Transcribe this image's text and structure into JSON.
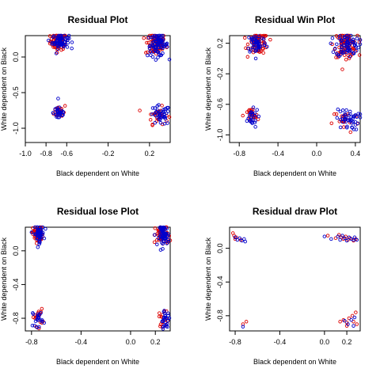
{
  "chart_data": [
    {
      "type": "scatter",
      "title": "Residual Plot",
      "xlabel": "Black dependent on White",
      "ylabel": "White dependent on Black",
      "xlim": [
        -1.0,
        0.4
      ],
      "ylim": [
        -1.2,
        0.3
      ],
      "xticks": [
        -1.0,
        -0.8,
        -0.6,
        -0.2,
        0.2
      ],
      "xtick_labels": [
        "-1.0",
        "-0.8",
        "-0.6",
        "-0.2",
        "0.2"
      ],
      "yticks": [
        0.0,
        -0.5,
        -1.0
      ],
      "ytick_labels": [
        "0.0",
        "-0.5",
        "-1.0"
      ],
      "series": [
        {
          "color": "#dd0000",
          "clusters": [
            {
              "cx": -0.68,
              "cy": 0.22,
              "sx": 0.04,
              "sy": 0.06,
              "n": 75
            },
            {
              "cx": 0.26,
              "cy": 0.18,
              "sx": 0.05,
              "sy": 0.08,
              "n": 75
            },
            {
              "cx": -0.66,
              "cy": -0.76,
              "sx": 0.03,
              "sy": 0.05,
              "n": 20
            },
            {
              "cx": 0.28,
              "cy": -0.82,
              "sx": 0.05,
              "sy": 0.06,
              "n": 25
            }
          ]
        },
        {
          "color": "#0000cc",
          "clusters": [
            {
              "cx": -0.66,
              "cy": 0.22,
              "sx": 0.04,
              "sy": 0.05,
              "n": 70
            },
            {
              "cx": 0.28,
              "cy": 0.17,
              "sx": 0.05,
              "sy": 0.08,
              "n": 80
            },
            {
              "cx": -0.67,
              "cy": -0.78,
              "sx": 0.03,
              "sy": 0.06,
              "n": 30
            },
            {
              "cx": 0.3,
              "cy": -0.82,
              "sx": 0.05,
              "sy": 0.07,
              "n": 40
            }
          ]
        }
      ]
    },
    {
      "type": "scatter",
      "title": "Residual Win Plot",
      "xlabel": "Black dependent on White",
      "ylabel": "White dependent on Black",
      "xlim": [
        -0.9,
        0.45
      ],
      "ylim": [
        -1.1,
        0.3
      ],
      "xticks": [
        -0.8,
        -0.4,
        0.0,
        0.4
      ],
      "xtick_labels": [
        "-0.8",
        "-0.4",
        "0.0",
        "0.4"
      ],
      "yticks": [
        0.2,
        -0.2,
        -0.6,
        -1.0
      ],
      "ytick_labels": [
        "0.2",
        "-0.2",
        "-0.6",
        "-1.0"
      ],
      "series": [
        {
          "color": "#dd0000",
          "clusters": [
            {
              "cx": -0.6,
              "cy": 0.2,
              "sx": 0.05,
              "sy": 0.07,
              "n": 70
            },
            {
              "cx": 0.3,
              "cy": 0.18,
              "sx": 0.06,
              "sy": 0.08,
              "n": 90
            },
            {
              "cx": -0.68,
              "cy": -0.75,
              "sx": 0.04,
              "sy": 0.05,
              "n": 22
            },
            {
              "cx": 0.3,
              "cy": -0.82,
              "sx": 0.07,
              "sy": 0.08,
              "n": 20
            }
          ]
        },
        {
          "color": "#0000cc",
          "clusters": [
            {
              "cx": -0.62,
              "cy": 0.2,
              "sx": 0.05,
              "sy": 0.07,
              "n": 50
            },
            {
              "cx": 0.32,
              "cy": 0.18,
              "sx": 0.06,
              "sy": 0.08,
              "n": 70
            },
            {
              "cx": -0.68,
              "cy": -0.78,
              "sx": 0.04,
              "sy": 0.06,
              "n": 25
            },
            {
              "cx": 0.32,
              "cy": -0.8,
              "sx": 0.06,
              "sy": 0.07,
              "n": 45
            }
          ]
        }
      ]
    },
    {
      "type": "scatter",
      "title": "Residual lose Plot",
      "xlabel": "Black dependent on White",
      "ylabel": "White dependent on Black",
      "xlim": [
        -0.85,
        0.32
      ],
      "ylim": [
        -0.95,
        0.28
      ],
      "xticks": [
        -0.8,
        -0.4,
        0.0,
        0.2
      ],
      "xtick_labels": [
        "-0.8",
        "-0.4",
        "0.0",
        "0.2"
      ],
      "yticks": [
        0.0,
        -0.4,
        -0.8
      ],
      "ytick_labels": [
        "0.0",
        "-0.4",
        "-0.8"
      ],
      "series": [
        {
          "color": "#dd0000",
          "clusters": [
            {
              "cx": -0.75,
              "cy": 0.2,
              "sx": 0.02,
              "sy": 0.05,
              "n": 60
            },
            {
              "cx": 0.26,
              "cy": 0.18,
              "sx": 0.03,
              "sy": 0.06,
              "n": 55
            },
            {
              "cx": -0.75,
              "cy": -0.79,
              "sx": 0.02,
              "sy": 0.05,
              "n": 20
            },
            {
              "cx": 0.27,
              "cy": -0.8,
              "sx": 0.02,
              "sy": 0.05,
              "n": 18
            }
          ]
        },
        {
          "color": "#0000cc",
          "clusters": [
            {
              "cx": -0.74,
              "cy": 0.2,
              "sx": 0.02,
              "sy": 0.05,
              "n": 55
            },
            {
              "cx": 0.27,
              "cy": 0.18,
              "sx": 0.02,
              "sy": 0.06,
              "n": 65
            },
            {
              "cx": -0.75,
              "cy": -0.8,
              "sx": 0.02,
              "sy": 0.05,
              "n": 20
            },
            {
              "cx": 0.28,
              "cy": -0.82,
              "sx": 0.02,
              "sy": 0.05,
              "n": 25
            }
          ]
        }
      ]
    },
    {
      "type": "scatter",
      "title": "Residual draw Plot",
      "xlabel": "Black dependent on White",
      "ylabel": "White dependent on Black",
      "xlim": [
        -0.85,
        0.32
      ],
      "ylim": [
        -0.98,
        0.25
      ],
      "xticks": [
        -0.8,
        -0.4,
        0.0,
        0.2
      ],
      "xtick_labels": [
        "-0.8",
        "-0.4",
        "0.0",
        "0.2"
      ],
      "yticks": [
        0.0,
        -0.4,
        -0.8
      ],
      "ytick_labels": [
        "0.0",
        "-0.4",
        "-0.8"
      ],
      "series": [
        {
          "color": "#dd0000",
          "points": [
            [
              -0.82,
              0.18
            ],
            [
              -0.81,
              0.15
            ],
            [
              -0.8,
              0.11
            ],
            [
              -0.79,
              0.13
            ],
            [
              -0.75,
              0.1
            ],
            [
              -0.73,
              -0.9
            ],
            [
              -0.7,
              -0.87
            ],
            [
              0.03,
              0.15
            ],
            [
              0.1,
              0.12
            ],
            [
              0.13,
              0.16
            ],
            [
              0.15,
              0.13
            ],
            [
              0.17,
              0.11
            ],
            [
              0.19,
              0.14
            ],
            [
              0.21,
              0.1
            ],
            [
              0.23,
              0.12
            ],
            [
              0.26,
              0.09
            ],
            [
              0.28,
              0.11
            ],
            [
              0.14,
              -0.87
            ],
            [
              0.17,
              -0.85
            ],
            [
              0.2,
              -0.88
            ],
            [
              0.22,
              -0.83
            ],
            [
              0.25,
              -0.8
            ],
            [
              0.28,
              -0.76
            ],
            [
              0.29,
              -0.9
            ],
            [
              0.26,
              -0.87
            ],
            [
              0.2,
              -0.92
            ]
          ]
        },
        {
          "color": "#0000cc",
          "points": [
            [
              -0.8,
              0.13
            ],
            [
              -0.78,
              0.1
            ],
            [
              -0.76,
              0.12
            ],
            [
              -0.74,
              0.09
            ],
            [
              -0.72,
              0.11
            ],
            [
              -0.71,
              0.08
            ],
            [
              -0.73,
              -0.93
            ],
            [
              0.0,
              0.14
            ],
            [
              0.06,
              0.11
            ],
            [
              0.12,
              0.14
            ],
            [
              0.14,
              0.1
            ],
            [
              0.16,
              0.15
            ],
            [
              0.18,
              0.12
            ],
            [
              0.2,
              0.09
            ],
            [
              0.22,
              0.13
            ],
            [
              0.24,
              0.11
            ],
            [
              0.26,
              0.1
            ],
            [
              0.27,
              0.13
            ],
            [
              0.29,
              0.1
            ],
            [
              0.18,
              -0.86
            ],
            [
              0.21,
              -0.9
            ],
            [
              0.24,
              -0.85
            ],
            [
              0.26,
              -0.92
            ],
            [
              0.27,
              -0.82
            ]
          ]
        }
      ]
    }
  ]
}
